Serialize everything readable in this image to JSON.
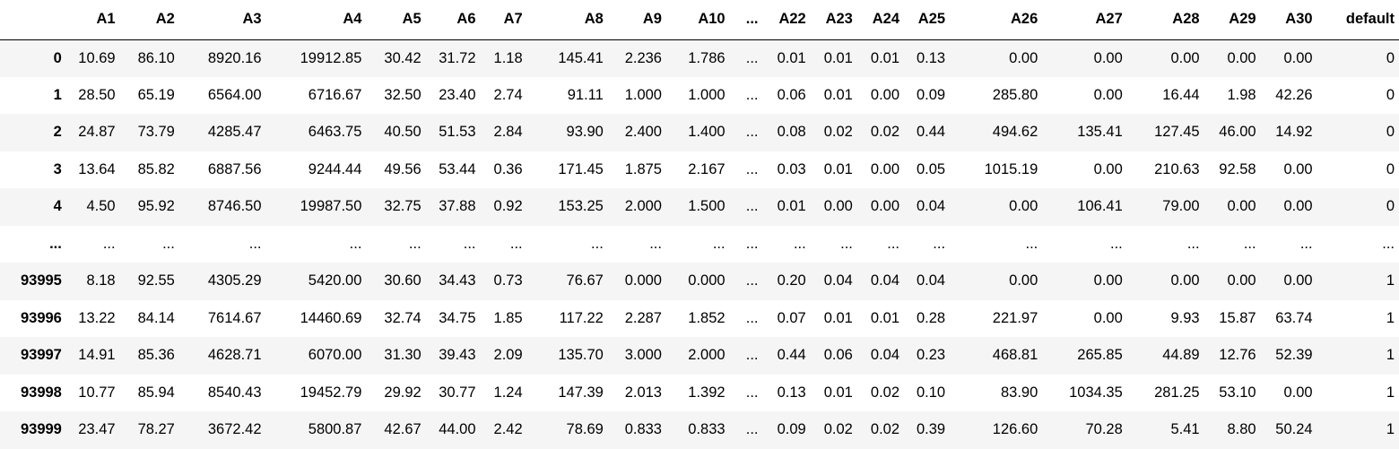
{
  "table": {
    "columns": [
      "",
      "A1",
      "A2",
      "A3",
      "A4",
      "A5",
      "A6",
      "A7",
      "A8",
      "A9",
      "A10",
      "...",
      "A22",
      "A23",
      "A24",
      "A25",
      "A26",
      "A27",
      "A28",
      "A29",
      "A30",
      "default"
    ],
    "rows": [
      {
        "index": "0",
        "cells": [
          "10.69",
          "86.10",
          "8920.16",
          "19912.85",
          "30.42",
          "31.72",
          "1.18",
          "145.41",
          "2.236",
          "1.786",
          "...",
          "0.01",
          "0.01",
          "0.01",
          "0.13",
          "0.00",
          "0.00",
          "0.00",
          "0.00",
          "0.00",
          "0"
        ]
      },
      {
        "index": "1",
        "cells": [
          "28.50",
          "65.19",
          "6564.00",
          "6716.67",
          "32.50",
          "23.40",
          "2.74",
          "91.11",
          "1.000",
          "1.000",
          "...",
          "0.06",
          "0.01",
          "0.00",
          "0.09",
          "285.80",
          "0.00",
          "16.44",
          "1.98",
          "42.26",
          "0"
        ]
      },
      {
        "index": "2",
        "cells": [
          "24.87",
          "73.79",
          "4285.47",
          "6463.75",
          "40.50",
          "51.53",
          "2.84",
          "93.90",
          "2.400",
          "1.400",
          "...",
          "0.08",
          "0.02",
          "0.02",
          "0.44",
          "494.62",
          "135.41",
          "127.45",
          "46.00",
          "14.92",
          "0"
        ]
      },
      {
        "index": "3",
        "cells": [
          "13.64",
          "85.82",
          "6887.56",
          "9244.44",
          "49.56",
          "53.44",
          "0.36",
          "171.45",
          "1.875",
          "2.167",
          "...",
          "0.03",
          "0.01",
          "0.00",
          "0.05",
          "1015.19",
          "0.00",
          "210.63",
          "92.58",
          "0.00",
          "0"
        ]
      },
      {
        "index": "4",
        "cells": [
          "4.50",
          "95.92",
          "8746.50",
          "19987.50",
          "32.75",
          "37.88",
          "0.92",
          "153.25",
          "2.000",
          "1.500",
          "...",
          "0.01",
          "0.00",
          "0.00",
          "0.04",
          "0.00",
          "106.41",
          "79.00",
          "0.00",
          "0.00",
          "0"
        ]
      },
      {
        "index": "...",
        "cells": [
          "...",
          "...",
          "...",
          "...",
          "...",
          "...",
          "...",
          "...",
          "...",
          "...",
          "...",
          "...",
          "...",
          "...",
          "...",
          "...",
          "...",
          "...",
          "...",
          "...",
          "..."
        ]
      },
      {
        "index": "93995",
        "cells": [
          "8.18",
          "92.55",
          "4305.29",
          "5420.00",
          "30.60",
          "34.43",
          "0.73",
          "76.67",
          "0.000",
          "0.000",
          "...",
          "0.20",
          "0.04",
          "0.04",
          "0.04",
          "0.00",
          "0.00",
          "0.00",
          "0.00",
          "0.00",
          "1"
        ]
      },
      {
        "index": "93996",
        "cells": [
          "13.22",
          "84.14",
          "7614.67",
          "14460.69",
          "32.74",
          "34.75",
          "1.85",
          "117.22",
          "2.287",
          "1.852",
          "...",
          "0.07",
          "0.01",
          "0.01",
          "0.28",
          "221.97",
          "0.00",
          "9.93",
          "15.87",
          "63.74",
          "1"
        ]
      },
      {
        "index": "93997",
        "cells": [
          "14.91",
          "85.36",
          "4628.71",
          "6070.00",
          "31.30",
          "39.43",
          "2.09",
          "135.70",
          "3.000",
          "2.000",
          "...",
          "0.44",
          "0.06",
          "0.04",
          "0.23",
          "468.81",
          "265.85",
          "44.89",
          "12.76",
          "52.39",
          "1"
        ]
      },
      {
        "index": "93998",
        "cells": [
          "10.77",
          "85.94",
          "8540.43",
          "19452.79",
          "29.92",
          "30.77",
          "1.24",
          "147.39",
          "2.013",
          "1.392",
          "...",
          "0.13",
          "0.01",
          "0.02",
          "0.10",
          "83.90",
          "1034.35",
          "281.25",
          "53.10",
          "0.00",
          "1"
        ]
      },
      {
        "index": "93999",
        "cells": [
          "23.47",
          "78.27",
          "3672.42",
          "5800.87",
          "42.67",
          "44.00",
          "2.42",
          "78.69",
          "0.833",
          "0.833",
          "...",
          "0.09",
          "0.02",
          "0.02",
          "0.39",
          "126.60",
          "70.28",
          "5.41",
          "8.80",
          "50.24",
          "1"
        ]
      }
    ]
  }
}
